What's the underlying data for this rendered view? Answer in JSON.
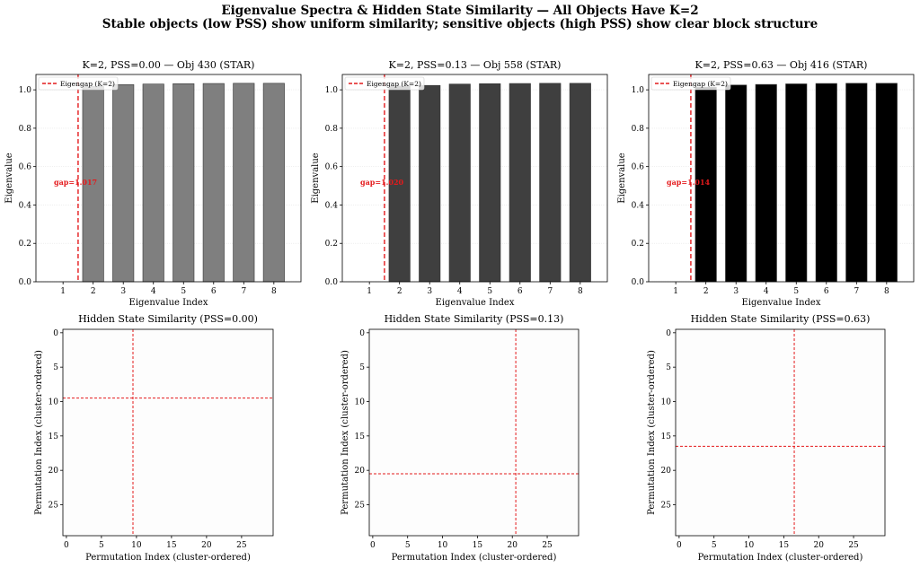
{
  "figure": {
    "title_line1": "Eigenvalue Spectra & Hidden State Similarity — All Objects Have K=2",
    "title_line2": "Stable objects (low PSS) show uniform similarity; sensitive objects (high PSS) show clear block structure"
  },
  "colors": {
    "redline": "#e41a1c"
  },
  "chart_data": [
    {
      "type": "bar",
      "title": "K=2, PSS=0.00 — Obj 430 (STAR)",
      "xlabel": "Eigenvalue Index",
      "ylabel": "Eigenvalue",
      "categories": [
        "1",
        "2",
        "3",
        "4",
        "5",
        "6",
        "7",
        "8"
      ],
      "values": [
        0.0,
        1.017,
        1.027,
        1.03,
        1.032,
        1.033,
        1.034,
        1.034
      ],
      "bar_color": "#7f7f7f",
      "ylim": [
        0,
        1.08
      ],
      "yticks": [
        "0.0",
        "0.2",
        "0.4",
        "0.6",
        "0.8",
        "1.0"
      ],
      "vline_between": [
        1,
        2
      ],
      "legend": "Eigengap (K=2)",
      "legend_position": "top-left",
      "annotation": "gap=1.017",
      "grid": true
    },
    {
      "type": "bar",
      "title": "K=2, PSS=0.13 — Obj 558 (STAR)",
      "xlabel": "Eigenvalue Index",
      "ylabel": "Eigenvalue",
      "categories": [
        "1",
        "2",
        "3",
        "4",
        "5",
        "6",
        "7",
        "8"
      ],
      "values": [
        0.0,
        1.02,
        1.023,
        1.03,
        1.032,
        1.033,
        1.034,
        1.034
      ],
      "bar_color": "#3f3f3f",
      "ylim": [
        0,
        1.08
      ],
      "yticks": [
        "0.0",
        "0.2",
        "0.4",
        "0.6",
        "0.8",
        "1.0"
      ],
      "vline_between": [
        1,
        2
      ],
      "legend": "Eigengap (K=2)",
      "legend_position": "top-left",
      "annotation": "gap=1.020",
      "grid": true
    },
    {
      "type": "bar",
      "title": "K=2, PSS=0.63 — Obj 416 (STAR)",
      "xlabel": "Eigenvalue Index",
      "ylabel": "Eigenvalue",
      "categories": [
        "1",
        "2",
        "3",
        "4",
        "5",
        "6",
        "7",
        "8"
      ],
      "values": [
        0.0,
        1.014,
        1.025,
        1.028,
        1.031,
        1.033,
        1.034,
        1.034
      ],
      "bar_color": "#000000",
      "ylim": [
        0,
        1.08
      ],
      "yticks": [
        "0.0",
        "0.2",
        "0.4",
        "0.6",
        "0.8",
        "1.0"
      ],
      "vline_between": [
        1,
        2
      ],
      "legend": "Eigengap (K=2)",
      "legend_position": "top-left",
      "annotation": "gap=1.014",
      "grid": true
    },
    {
      "type": "heatmap",
      "title": "Hidden State Similarity (PSS=0.00)",
      "xlabel": "Permutation Index (cluster-ordered)",
      "ylabel": "Permutation Index (cluster-ordered)",
      "size": 30,
      "ticks": [
        "0",
        "5",
        "10",
        "15",
        "20",
        "25"
      ],
      "cluster_boundary": 9.5,
      "fill_color": "#fdfdfd"
    },
    {
      "type": "heatmap",
      "title": "Hidden State Similarity (PSS=0.13)",
      "xlabel": "Permutation Index (cluster-ordered)",
      "ylabel": "Permutation Index (cluster-ordered)",
      "size": 30,
      "ticks": [
        "0",
        "5",
        "10",
        "15",
        "20",
        "25"
      ],
      "cluster_boundary": 20.5,
      "fill_color": "#fdfdfd"
    },
    {
      "type": "heatmap",
      "title": "Hidden State Similarity (PSS=0.63)",
      "xlabel": "Permutation Index (cluster-ordered)",
      "ylabel": "Permutation Index (cluster-ordered)",
      "size": 30,
      "ticks": [
        "0",
        "5",
        "10",
        "15",
        "20",
        "25"
      ],
      "cluster_boundary": 16.5,
      "fill_color": "#fdfdfd"
    }
  ]
}
